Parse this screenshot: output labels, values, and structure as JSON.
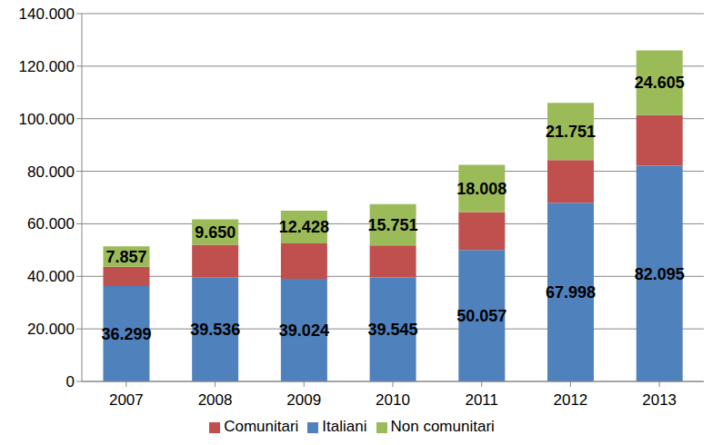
{
  "chart_data": {
    "type": "bar",
    "stacked": true,
    "grid": true,
    "legend": "bottom",
    "categories": [
      "2007",
      "2008",
      "2009",
      "2010",
      "2011",
      "2012",
      "2013"
    ],
    "series": [
      {
        "name": "Italiani",
        "color": "#4f81bd",
        "data_labels": true,
        "values": [
          36299,
          39536,
          39024,
          39545,
          50057,
          67998,
          82095
        ],
        "value_labels": [
          "36.299",
          "39.536",
          "39.024",
          "39.545",
          "50.057",
          "67.998",
          "82.095"
        ]
      },
      {
        "name": "Comunitari",
        "color": "#c0504d",
        "values": [
          7300,
          12500,
          13500,
          12200,
          14400,
          16300,
          19300
        ]
      },
      {
        "name": "Non comunitari",
        "color": "#9bbb59",
        "data_labels": true,
        "values": [
          7857,
          9650,
          12428,
          15751,
          18008,
          21751,
          24605
        ],
        "value_labels": [
          "7.857",
          "9.650",
          "12.428",
          "15.751",
          "18.008",
          "21.751",
          "24.605"
        ]
      }
    ],
    "ylim": [
      0,
      140000
    ],
    "yticks": [
      0,
      {
        "value": 20000,
        "label": "20.000"
      },
      {
        "value": 40000,
        "label": "40.000"
      },
      {
        "value": 60000,
        "label": "60.000"
      },
      {
        "value": 80000,
        "label": "80.000"
      },
      {
        "value": 100000,
        "label": "100.000"
      },
      {
        "value": 120000,
        "label": "120.000"
      },
      {
        "value": 140000,
        "label": "140.000"
      }
    ]
  }
}
